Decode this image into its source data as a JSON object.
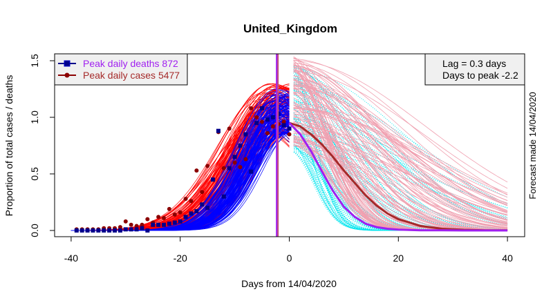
{
  "chart_data": {
    "type": "line",
    "title": "United_Kingdom",
    "xlabel": "Days from 14/04/2020",
    "ylabel": "Proportion of total cases / deaths",
    "side_label": "Forecast made 14/04/2020",
    "xlim": [
      -41,
      44
    ],
    "ylim": [
      -0.05,
      1.55
    ],
    "x_ticks": [
      -40,
      -20,
      0,
      20,
      40
    ],
    "x_tick_labels": [
      "-40",
      "-20",
      "0",
      "20",
      "40"
    ],
    "y_ticks": [
      0.0,
      0.5,
      1.0,
      1.5
    ],
    "y_tick_labels": [
      "0.0",
      "0.5",
      "1.0",
      "1.5"
    ],
    "grid": false,
    "legend": {
      "placement": "top-left",
      "entries": [
        {
          "label": "Peak daily deaths 872",
          "color": "#00008B",
          "text_color": "#A020F0",
          "marker": "square"
        },
        {
          "label": "Peak daily cases 5477",
          "color": "#8B0000",
          "text_color": "#A52A2A",
          "marker": "circle"
        }
      ]
    },
    "info_box": {
      "placement": "top-right",
      "lines": [
        "Lag =  0.3 days",
        "Days to peak -2.2"
      ]
    },
    "peak_marker": {
      "x": -2.2,
      "colors": [
        "#A020F0",
        "#CD5C5C"
      ]
    },
    "colors": {
      "deaths_fit": "#0000FF",
      "cases_fit": "#FF0000",
      "deaths_points": "#00008B",
      "cases_points": "#8B0000",
      "deaths_forecast_ensemble": "#00E5EE",
      "cases_forecast_ensemble": "#F0A0B0",
      "deaths_forecast_mean": "#A020F0",
      "cases_forecast_mean": "#A52A2A"
    },
    "series": [
      {
        "name": "Daily deaths (observed)",
        "type": "scatter",
        "x": [
          -39,
          -38,
          -37,
          -36,
          -35,
          -34,
          -33,
          -32,
          -31,
          -30,
          -29,
          -28,
          -27,
          -26,
          -25,
          -24,
          -23,
          -22,
          -21,
          -20,
          -19,
          -18,
          -17,
          -16,
          -15,
          -14,
          -13,
          -12,
          -11,
          -10,
          -9,
          -8,
          -7,
          -6,
          -5,
          -4,
          -3,
          -2,
          -1,
          0
        ],
        "y": [
          0.0,
          0.0,
          0.0,
          0.0,
          0.0,
          0.0,
          0.0,
          0.0,
          0.0,
          0.01,
          0.01,
          0.01,
          0.02,
          0.0,
          0.05,
          0.05,
          0.05,
          0.06,
          0.07,
          0.08,
          0.12,
          0.15,
          0.17,
          0.23,
          0.2,
          0.45,
          0.88,
          0.3,
          0.55,
          0.65,
          0.75,
          0.85,
          0.52,
          0.95,
          1.08,
          0.98,
          1.0,
          1.03,
          0.93,
          0.9
        ]
      },
      {
        "name": "Daily cases (observed)",
        "type": "scatter",
        "x": [
          -39,
          -38,
          -37,
          -36,
          -35,
          -34,
          -33,
          -32,
          -31,
          -30,
          -29,
          -28,
          -27,
          -26,
          -25,
          -24,
          -23,
          -22,
          -21,
          -20,
          -19,
          -18,
          -17,
          -16,
          -15,
          -14,
          -13,
          -12,
          -11,
          -10,
          -9,
          -8,
          -7,
          -6,
          -5,
          -4,
          -3,
          -2,
          -1,
          0
        ],
        "y": [
          0.01,
          0.01,
          0.01,
          0.01,
          0.01,
          0.02,
          0.02,
          0.02,
          0.03,
          0.08,
          0.05,
          0.04,
          0.05,
          0.1,
          0.07,
          0.12,
          0.11,
          0.19,
          0.14,
          0.16,
          0.28,
          0.26,
          0.53,
          0.34,
          0.57,
          0.45,
          0.87,
          0.55,
          0.9,
          0.6,
          0.56,
          0.63,
          1.08,
          1.0,
          0.96,
          0.86,
          0.92,
          0.94,
          0.96,
          0.85
        ]
      },
      {
        "name": "Deaths forecast (mean)",
        "type": "line",
        "x": [
          0,
          2,
          4,
          6,
          8,
          10,
          12,
          14,
          16,
          18,
          20,
          24,
          28,
          32,
          36,
          40
        ],
        "y": [
          0.95,
          0.85,
          0.7,
          0.52,
          0.35,
          0.21,
          0.12,
          0.06,
          0.03,
          0.015,
          0.008,
          0.002,
          0.001,
          0.0,
          0.0,
          0.0
        ]
      },
      {
        "name": "Cases forecast (mean)",
        "type": "line",
        "x": [
          0,
          2,
          4,
          6,
          8,
          10,
          12,
          14,
          16,
          18,
          20,
          24,
          28,
          32,
          36,
          40
        ],
        "y": [
          0.95,
          0.92,
          0.85,
          0.76,
          0.65,
          0.53,
          0.42,
          0.31,
          0.22,
          0.15,
          0.1,
          0.04,
          0.015,
          0.006,
          0.002,
          0.001
        ]
      }
    ]
  }
}
